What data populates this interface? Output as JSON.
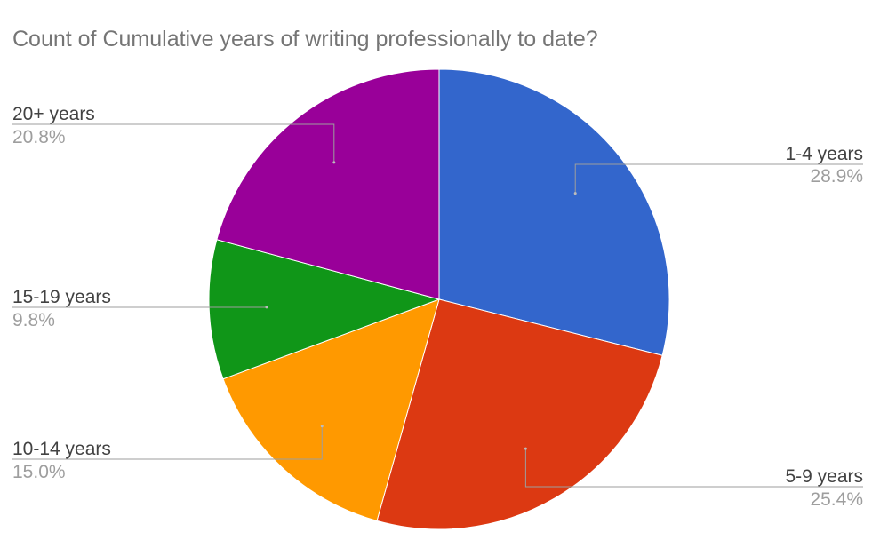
{
  "chart_data": {
    "type": "pie",
    "title": "Count of Cumulative years of writing professionally to date?",
    "slices": [
      {
        "label": "1-4 years",
        "value": 28.9,
        "pct_label": "28.9%",
        "color": "#3366cc"
      },
      {
        "label": "5-9 years",
        "value": 25.4,
        "pct_label": "25.4%",
        "color": "#dc3912"
      },
      {
        "label": "10-14 years",
        "value": 15.0,
        "pct_label": "15.0%",
        "color": "#ff9900"
      },
      {
        "label": "15-19 years",
        "value": 9.8,
        "pct_label": "9.8%",
        "color": "#109618"
      },
      {
        "label": "20+ years",
        "value": 20.8,
        "pct_label": "20.8%",
        "color": "#990099"
      }
    ],
    "legend": "labeled",
    "start_angle": "top",
    "direction": "clockwise"
  }
}
